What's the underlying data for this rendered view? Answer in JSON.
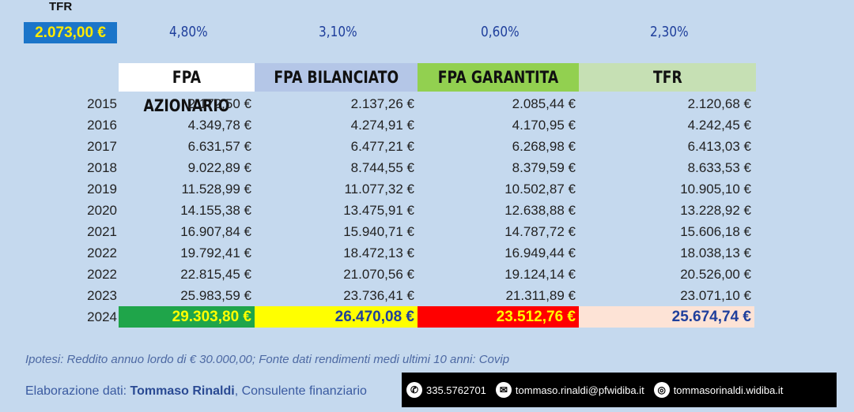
{
  "top": {
    "tfr_label": "TFR",
    "tfr_value": "2.073,00 €",
    "rates": [
      "4,80%",
      "3,10%",
      "0,60%",
      "2,30%"
    ]
  },
  "headers": [
    "FPA AZIONARIO",
    "FPA BILANCIATO",
    "FPA GARANTITA",
    "TFR"
  ],
  "header_colors": [
    "#ffffff",
    "#b4c6e7",
    "#92d050",
    "#c6e0b4"
  ],
  "rows": [
    {
      "year": "2015",
      "v": [
        "2.172,50 €",
        "2.137,26 €",
        "2.085,44 €",
        "2.120,68 €"
      ]
    },
    {
      "year": "2016",
      "v": [
        "4.349,78 €",
        "4.274,91 €",
        "4.170,95 €",
        "4.242,45 €"
      ]
    },
    {
      "year": "2017",
      "v": [
        "6.631,57 €",
        "6.477,21 €",
        "6.268,98 €",
        "6.413,03 €"
      ]
    },
    {
      "year": "2018",
      "v": [
        "9.022,89 €",
        "8.744,55 €",
        "8.379,59 €",
        "8.633,53 €"
      ]
    },
    {
      "year": "2019",
      "v": [
        "11.528,99 €",
        "11.077,32 €",
        "10.502,87 €",
        "10.905,10 €"
      ]
    },
    {
      "year": "2020",
      "v": [
        "14.155,38 €",
        "13.475,91 €",
        "12.638,88 €",
        "13.228,92 €"
      ]
    },
    {
      "year": "2021",
      "v": [
        "16.907,84 €",
        "15.940,71 €",
        "14.787,72 €",
        "15.606,18 €"
      ]
    },
    {
      "year": "2022",
      "v": [
        "19.792,41 €",
        "18.472,13 €",
        "16.949,44 €",
        "18.038,13 €"
      ]
    },
    {
      "year": "2022",
      "v": [
        "22.815,45 €",
        "21.070,56 €",
        "19.124,14 €",
        "20.526,00 €"
      ]
    },
    {
      "year": "2023",
      "v": [
        "25.983,59 €",
        "23.736,41 €",
        "21.311,89 €",
        "23.071,10 €"
      ]
    }
  ],
  "final_row": {
    "year": "2024",
    "v": [
      "29.303,80 €",
      "26.470,08 €",
      "23.512,76 €",
      "25.674,74 €"
    ],
    "bg": [
      "#1fa54a",
      "#ffff00",
      "#ff0000",
      "#fde3d6"
    ],
    "fg": [
      "#ffff00",
      "#1f3f9c",
      "#ffff00",
      "#1f3f9c"
    ]
  },
  "footer": {
    "note": "Ipotesi: Reddito annuo lordo di € 30.000,00; Fonte dati rendimenti medi ultimi 10 anni: Covip",
    "credit_prefix": "Elaborazione dati: ",
    "credit_name": "Tommaso Rinaldi",
    "credit_suffix": ", Consulente finanziario",
    "phone": "335.5762701",
    "email": "tommaso.rinaldi@pfwidiba.it",
    "website": "tommasorinaldi.widiba.it",
    "phone_icon": "phone-icon",
    "email_icon": "mail-icon",
    "web_icon": "globe-icon"
  }
}
